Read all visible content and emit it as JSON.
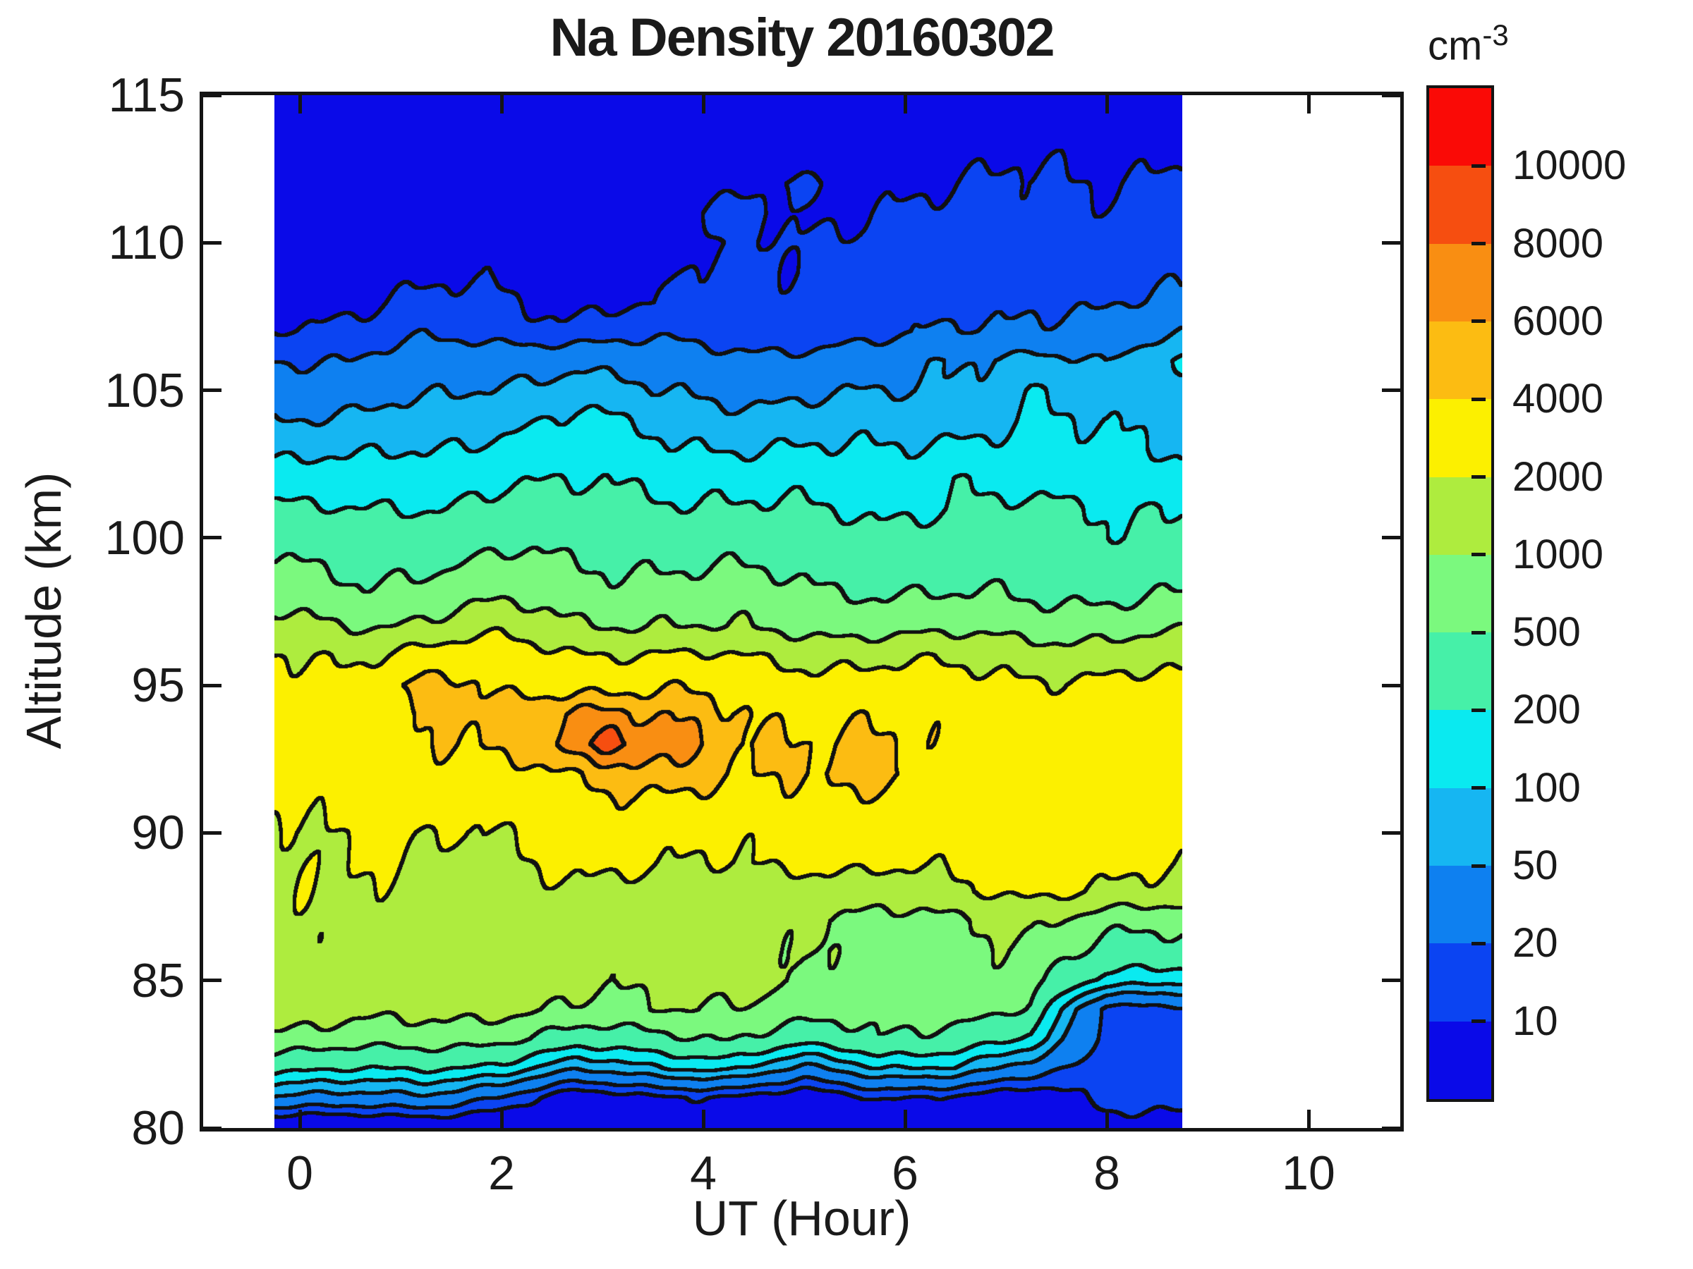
{
  "title": "Na Density 20160302",
  "axes": {
    "xlabel": "UT (Hour)",
    "ylabel": "Altitude (km)",
    "x_ticks": [
      0,
      2,
      4,
      6,
      8,
      10
    ],
    "y_ticks": [
      80,
      85,
      90,
      95,
      100,
      105,
      110,
      115
    ],
    "xlim": [
      -1,
      11
    ],
    "ylim": [
      80,
      115
    ]
  },
  "colorbar": {
    "unit_base": "cm",
    "unit_exponent": "-3",
    "boundary_labels": [
      "10",
      "20",
      "50",
      "100",
      "200",
      "500",
      "1000",
      "2000",
      "4000",
      "6000",
      "8000",
      "10000"
    ]
  },
  "chart_data": {
    "type": "heatmap",
    "subtype": "filled-contour",
    "title": "Na Density 20160302",
    "xlabel": "UT (Hour)",
    "ylabel": "Altitude (km)",
    "units": "cm-3",
    "xlim": [
      -1,
      11
    ],
    "ylim": [
      80,
      115
    ],
    "data_x_range": [
      -0.25,
      8.75
    ],
    "grid": true,
    "legend_position": "right-colorbar",
    "contour_levels": [
      10,
      20,
      50,
      100,
      200,
      500,
      1000,
      2000,
      4000,
      6000,
      8000,
      10000
    ],
    "band_colors": [
      "#0a0ae8",
      "#0b44f2",
      "#0e80f0",
      "#16b6f2",
      "#0aeaf0",
      "#46f0a8",
      "#7bf97e",
      "#aeec3e",
      "#fcf000",
      "#fcbc12",
      "#f98e12",
      "#f64e10",
      "#fa0a06"
    ],
    "contour_line_color": "#111111",
    "x": [
      -0.25,
      0.5,
      1.25,
      2.0,
      2.75,
      3.5,
      4.25,
      5.0,
      5.75,
      6.5,
      7.25,
      8.0,
      8.75
    ],
    "y": [
      80,
      81,
      82,
      83,
      84,
      85,
      86,
      87,
      88,
      89,
      90,
      91,
      92,
      93,
      94,
      95,
      96,
      97,
      98,
      99,
      100,
      101,
      102,
      103,
      104,
      105,
      106,
      107,
      108,
      109,
      110,
      111,
      112,
      113,
      114,
      115
    ],
    "values_cm3": [
      [
        4,
        4,
        4,
        4,
        5,
        5,
        4,
        5,
        4,
        4,
        5,
        6,
        6
      ],
      [
        45,
        40,
        38,
        18,
        6,
        8,
        9,
        6,
        10,
        8,
        6,
        13,
        13
      ],
      [
        250,
        230,
        210,
        150,
        60,
        90,
        110,
        45,
        100,
        80,
        35,
        14,
        14
      ],
      [
        800,
        780,
        750,
        550,
        350,
        400,
        480,
        300,
        520,
        330,
        180,
        16,
        15
      ],
      [
        1300,
        1350,
        1250,
        1100,
        900,
        1050,
        850,
        750,
        700,
        650,
        450,
        16,
        15
      ],
      [
        1450,
        1500,
        1400,
        1300,
        1200,
        1250,
        1200,
        900,
        850,
        800,
        700,
        180,
        120
      ],
      [
        1500,
        1550,
        1500,
        1400,
        1300,
        1350,
        1300,
        950,
        900,
        850,
        800,
        420,
        380
      ],
      [
        1600,
        1650,
        1600,
        1500,
        1400,
        1500,
        1400,
        950,
        900,
        900,
        1100,
        700,
        650
      ],
      [
        1700,
        1750,
        1700,
        1600,
        1550,
        1600,
        1550,
        1300,
        1400,
        1900,
        2100,
        1900,
        1800
      ],
      [
        1800,
        1850,
        1900,
        1950,
        2100,
        2200,
        2150,
        2100,
        2300,
        2500,
        2600,
        2500,
        2400
      ],
      [
        1950,
        1960,
        2050,
        2300,
        2500,
        2600,
        2500,
        2600,
        2700,
        2900,
        3000,
        2900,
        2800
      ],
      [
        2300,
        2400,
        2500,
        2800,
        3100,
        3300,
        3600,
        3400,
        3100,
        3000,
        3100,
        3000,
        2900
      ],
      [
        2600,
        2700,
        2900,
        3600,
        4300,
        4900,
        4600,
        4200,
        4300,
        3400,
        3300,
        3100,
        3000
      ],
      [
        2800,
        2950,
        3300,
        4600,
        8600,
        7200,
        4900,
        4400,
        3900,
        3300,
        3200,
        3000,
        2900
      ],
      [
        2750,
        2900,
        3400,
        5200,
        7800,
        5400,
        4300,
        3800,
        3400,
        3100,
        3000,
        2800,
        2750
      ],
      [
        2500,
        2700,
        4600,
        3300,
        3600,
        3400,
        3200,
        2900,
        2700,
        2500,
        2400,
        2300,
        2250
      ],
      [
        1950,
        1980,
        2600,
        2900,
        2300,
        2050,
        1900,
        1800,
        1700,
        1600,
        1500,
        1450,
        1400
      ],
      [
        1200,
        1050,
        1150,
        1500,
        1150,
        1020,
        900,
        850,
        800,
        750,
        780,
        800,
        820
      ],
      [
        700,
        620,
        700,
        850,
        700,
        720,
        680,
        600,
        550,
        480,
        470,
        490,
        500
      ],
      [
        500,
        430,
        500,
        580,
        500,
        520,
        480,
        400,
        370,
        350,
        330,
        340,
        350
      ],
      [
        330,
        290,
        330,
        400,
        350,
        380,
        340,
        290,
        270,
        280,
        250,
        240,
        245
      ],
      [
        210,
        180,
        215,
        260,
        230,
        250,
        220,
        190,
        185,
        215,
        205,
        210,
        215
      ],
      [
        140,
        125,
        150,
        185,
        175,
        180,
        165,
        140,
        135,
        205,
        130,
        135,
        140
      ],
      [
        90,
        80,
        100,
        130,
        140,
        120,
        105,
        95,
        100,
        130,
        115,
        105,
        110
      ],
      [
        55,
        50,
        65,
        90,
        110,
        80,
        70,
        65,
        70,
        80,
        105,
        85,
        105
      ],
      [
        35,
        32,
        42,
        60,
        70,
        48,
        44,
        42,
        45,
        55,
        102,
        60,
        103
      ],
      [
        22,
        20,
        28,
        38,
        42,
        30,
        27,
        26,
        30,
        52,
        70,
        42,
        105
      ],
      [
        11,
        13,
        16,
        14,
        13,
        15,
        14,
        14,
        14,
        22,
        25,
        24,
        48
      ],
      [
        8,
        9,
        11,
        11,
        9,
        9,
        13,
        13,
        13,
        15,
        20,
        17,
        22
      ],
      [
        7,
        7,
        8,
        8,
        7,
        8,
        11,
        12,
        12,
        13,
        14,
        15,
        15
      ],
      [
        6,
        6,
        7,
        7,
        6,
        7,
        9,
        12,
        12,
        12,
        13,
        13,
        13
      ],
      [
        5,
        5,
        6,
        6,
        5,
        6,
        12,
        9,
        11,
        11,
        12,
        12,
        12
      ],
      [
        5,
        5,
        5,
        5,
        5,
        5,
        7,
        11,
        9,
        9,
        11,
        11,
        11
      ],
      [
        4,
        4,
        4,
        4,
        4,
        5,
        5,
        6,
        6,
        7,
        9,
        9,
        9
      ],
      [
        4,
        4,
        4,
        4,
        4,
        4,
        5,
        5,
        5,
        6,
        7,
        8,
        7
      ],
      [
        3,
        3,
        3,
        4,
        4,
        4,
        4,
        5,
        5,
        5,
        6,
        7,
        6
      ]
    ]
  }
}
